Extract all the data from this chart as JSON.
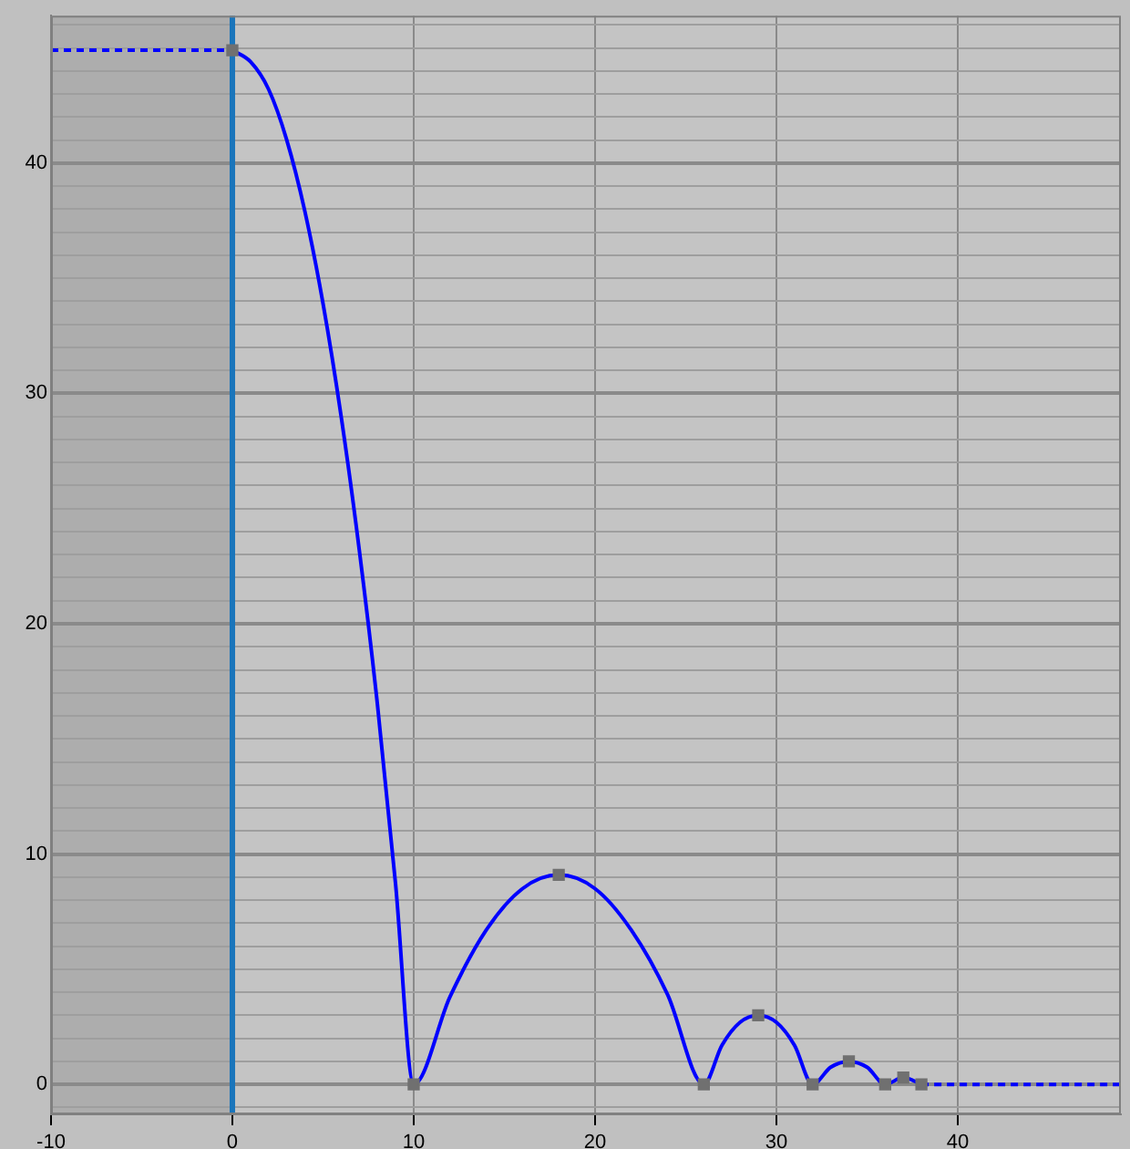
{
  "chart_data": {
    "type": "line",
    "xlim": [
      -10,
      49
    ],
    "xticks": [
      -10,
      0,
      10,
      20,
      30,
      40
    ],
    "ylim": [
      -1.3,
      46.4
    ],
    "yticks": [
      {
        "value": -1,
        "label": null
      },
      0,
      {
        "value": 1,
        "label": null
      },
      {
        "value": 2,
        "label": null
      },
      {
        "value": 3,
        "label": null
      },
      {
        "value": 4,
        "label": null
      },
      {
        "value": 5,
        "label": null
      },
      {
        "value": 6,
        "label": null
      },
      {
        "value": 7,
        "label": null
      },
      {
        "value": 8,
        "label": null
      },
      {
        "value": 9,
        "label": null
      },
      10,
      {
        "value": 11,
        "label": null
      },
      {
        "value": 12,
        "label": null
      },
      {
        "value": 13,
        "label": null
      },
      {
        "value": 14,
        "label": null
      },
      {
        "value": 15,
        "label": null
      },
      {
        "value": 16,
        "label": null
      },
      {
        "value": 17,
        "label": null
      },
      {
        "value": 18,
        "label": null
      },
      {
        "value": 19,
        "label": null
      },
      20,
      {
        "value": 21,
        "label": null
      },
      {
        "value": 22,
        "label": null
      },
      {
        "value": 23,
        "label": null
      },
      {
        "value": 24,
        "label": null
      },
      {
        "value": 25,
        "label": null
      },
      {
        "value": 26,
        "label": null
      },
      {
        "value": 27,
        "label": null
      },
      {
        "value": 28,
        "label": null
      },
      {
        "value": 29,
        "label": null
      },
      30,
      {
        "value": 31,
        "label": null
      },
      {
        "value": 32,
        "label": null
      },
      {
        "value": 33,
        "label": null
      },
      {
        "value": 34,
        "label": null
      },
      {
        "value": 35,
        "label": null
      },
      {
        "value": 36,
        "label": null
      },
      {
        "value": 37,
        "label": null
      },
      {
        "value": 38,
        "label": null
      },
      {
        "value": 39,
        "label": null
      },
      40,
      {
        "value": 41,
        "label": null
      },
      {
        "value": 42,
        "label": null
      },
      {
        "value": 43,
        "label": null
      },
      {
        "value": 44,
        "label": null
      },
      {
        "value": 45,
        "label": null
      },
      {
        "value": 46,
        "label": null
      }
    ],
    "grid": true,
    "legend": false,
    "series": [
      {
        "color": "#0000ff",
        "marker": "none",
        "x": [
          0,
          1,
          2,
          3,
          4,
          5,
          6,
          7,
          8,
          9,
          10,
          12,
          14,
          16,
          18,
          20,
          22,
          24,
          26,
          27,
          28,
          29,
          30,
          31,
          32,
          33,
          34,
          35,
          36,
          37,
          38
        ],
        "values": [
          44.9,
          44.4,
          43.2,
          41.0,
          37.9,
          33.9,
          29.0,
          23.2,
          16.5,
          8.7,
          0,
          3.8,
          6.7,
          8.5,
          9.1,
          8.5,
          6.7,
          3.9,
          0,
          1.7,
          2.7,
          3.0,
          2.7,
          1.7,
          0,
          0.75,
          1.0,
          0.75,
          0,
          0.3,
          0
        ]
      },
      {
        "color": "#0000ff",
        "marker": "none",
        "line_style": "dashed",
        "x": [
          -10,
          0
        ],
        "values": [
          44.9,
          44.9
        ]
      },
      {
        "color": "#0000ff",
        "marker": "none",
        "line_style": "dashed",
        "x": [
          38,
          49
        ],
        "values": [
          0,
          0
        ]
      },
      {
        "type": "scatter",
        "color": "#707070",
        "marker": "square",
        "x": [
          0,
          10,
          18,
          26,
          29,
          32,
          34,
          36,
          37,
          38
        ],
        "values": [
          44.9,
          0,
          9.1,
          0,
          3.0,
          0,
          1.0,
          0,
          0.3,
          0
        ]
      }
    ],
    "bands": [
      {
        "axis": "x",
        "from": -10,
        "to": 0,
        "color": "#adadad"
      }
    ],
    "ref_lines": [
      {
        "axis": "x",
        "value": 0,
        "color": "#1a75bb"
      }
    ]
  }
}
